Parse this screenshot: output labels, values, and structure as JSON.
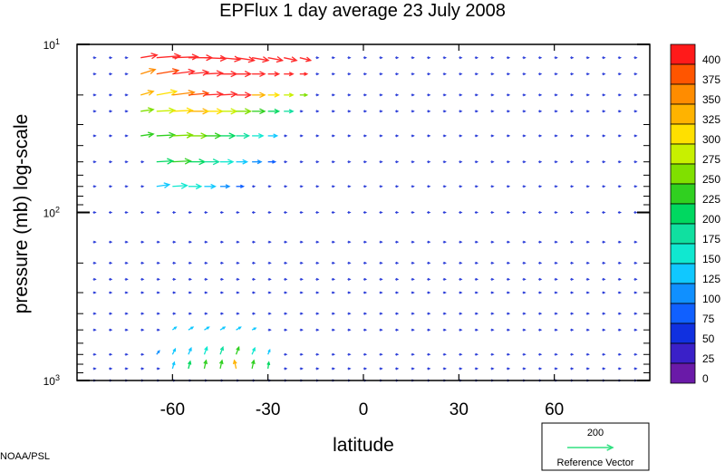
{
  "chart_data": {
    "type": "vector-field",
    "title": "EPFlux  1 day average  23 July       2008",
    "xlabel": "latitude",
    "ylabel": "pressure (mb)  log-scale",
    "xlim": [
      -90,
      90
    ],
    "ylim_log10": [
      1,
      3
    ],
    "x_ticks": [
      {
        "value": -60,
        "label": "-60"
      },
      {
        "value": -30,
        "label": "-30"
      },
      {
        "value": 0,
        "label": "0"
      },
      {
        "value": 30,
        "label": "30"
      },
      {
        "value": 60,
        "label": "60"
      }
    ],
    "y_ticks": [
      {
        "exp": 1,
        "label": "10",
        "sup": "1"
      },
      {
        "exp": 2,
        "label": "10",
        "sup": "2"
      },
      {
        "exp": 3,
        "label": "10",
        "sup": "3"
      }
    ],
    "colorbar": {
      "levels": [
        "400",
        "375",
        "350",
        "325",
        "300",
        "275",
        "250",
        "225",
        "200",
        "175",
        "150",
        "125",
        "100",
        "75",
        "50",
        "25",
        "0"
      ],
      "colors": [
        "#ff1a1a",
        "#ff5500",
        "#ff8c00",
        "#ffb300",
        "#ffe000",
        "#c8f000",
        "#80e000",
        "#30d020",
        "#00d860",
        "#10e0a0",
        "#10e8d0",
        "#10c8ff",
        "#1090ff",
        "#1060ff",
        "#1030e0",
        "#3a20c8",
        "#6a1aa8"
      ]
    },
    "reference_vector": {
      "value": "200",
      "label": "Reference Vector",
      "color": "#30e080"
    },
    "vectors": [
      {
        "lat": -70,
        "p": 12,
        "u": 18,
        "v": 3,
        "c": "#ff2a2a"
      },
      {
        "lat": -65,
        "p": 12,
        "u": 26,
        "v": 2,
        "c": "#ff2a2a"
      },
      {
        "lat": -60,
        "p": 12,
        "u": 28,
        "v": 1,
        "c": "#ff2a2a"
      },
      {
        "lat": -55,
        "p": 12,
        "u": 26,
        "v": 0,
        "c": "#ff2a2a"
      },
      {
        "lat": -50,
        "p": 12,
        "u": 24,
        "v": -1,
        "c": "#ff2a2a"
      },
      {
        "lat": -45,
        "p": 12,
        "u": 22,
        "v": -2,
        "c": "#ff2a2a"
      },
      {
        "lat": -40,
        "p": 12,
        "u": 20,
        "v": -3,
        "c": "#ff2a2a"
      },
      {
        "lat": -35,
        "p": 12,
        "u": 18,
        "v": -3,
        "c": "#ff2a2a"
      },
      {
        "lat": -30,
        "p": 12,
        "u": 16,
        "v": -3,
        "c": "#ff2a2a"
      },
      {
        "lat": -25,
        "p": 12,
        "u": 14,
        "v": -3,
        "c": "#ff2a2a"
      },
      {
        "lat": -20,
        "p": 12,
        "u": 12,
        "v": -3,
        "c": "#ff2a2a"
      },
      {
        "lat": -70,
        "p": 15,
        "u": 16,
        "v": 5,
        "c": "#ff8c00"
      },
      {
        "lat": -65,
        "p": 15,
        "u": 24,
        "v": 4,
        "c": "#ff4a00"
      },
      {
        "lat": -60,
        "p": 15,
        "u": 24,
        "v": 3,
        "c": "#ff2a2a"
      },
      {
        "lat": -55,
        "p": 15,
        "u": 22,
        "v": 2,
        "c": "#ff2a2a"
      },
      {
        "lat": -50,
        "p": 15,
        "u": 20,
        "v": 1,
        "c": "#ff2a2a"
      },
      {
        "lat": -45,
        "p": 15,
        "u": 18,
        "v": 0,
        "c": "#ff2a2a"
      },
      {
        "lat": -40,
        "p": 15,
        "u": 16,
        "v": 0,
        "c": "#ff2a2a"
      },
      {
        "lat": -35,
        "p": 15,
        "u": 14,
        "v": 0,
        "c": "#ff2a2a"
      },
      {
        "lat": -30,
        "p": 15,
        "u": 12,
        "v": 0,
        "c": "#ff2a2a"
      },
      {
        "lat": -25,
        "p": 15,
        "u": 10,
        "v": 0,
        "c": "#ff2a2a"
      },
      {
        "lat": -20,
        "p": 15,
        "u": 8,
        "v": 0,
        "c": "#ff2a2a"
      },
      {
        "lat": -70,
        "p": 20,
        "u": 14,
        "v": 4,
        "c": "#ffb300"
      },
      {
        "lat": -65,
        "p": 20,
        "u": 22,
        "v": 4,
        "c": "#ffe000"
      },
      {
        "lat": -60,
        "p": 20,
        "u": 24,
        "v": 3,
        "c": "#ff8c00"
      },
      {
        "lat": -55,
        "p": 20,
        "u": 22,
        "v": 2,
        "c": "#ff4a00"
      },
      {
        "lat": -50,
        "p": 20,
        "u": 20,
        "v": 1,
        "c": "#ff2a2a"
      },
      {
        "lat": -45,
        "p": 20,
        "u": 18,
        "v": 1,
        "c": "#ff2a2a"
      },
      {
        "lat": -40,
        "p": 20,
        "u": 16,
        "v": 0,
        "c": "#ff2a2a"
      },
      {
        "lat": -35,
        "p": 20,
        "u": 14,
        "v": 0,
        "c": "#ffb300"
      },
      {
        "lat": -30,
        "p": 20,
        "u": 12,
        "v": 0,
        "c": "#ffe000"
      },
      {
        "lat": -25,
        "p": 20,
        "u": 10,
        "v": 0,
        "c": "#c8f000"
      },
      {
        "lat": -20,
        "p": 20,
        "u": 8,
        "v": 0,
        "c": "#80e000"
      },
      {
        "lat": -70,
        "p": 25,
        "u": 14,
        "v": 2,
        "c": "#80e000"
      },
      {
        "lat": -65,
        "p": 25,
        "u": 20,
        "v": 1,
        "c": "#c8f000"
      },
      {
        "lat": -60,
        "p": 25,
        "u": 22,
        "v": 1,
        "c": "#ffe000"
      },
      {
        "lat": -55,
        "p": 25,
        "u": 22,
        "v": 0,
        "c": "#ffb300"
      },
      {
        "lat": -50,
        "p": 25,
        "u": 20,
        "v": 0,
        "c": "#ffe000"
      },
      {
        "lat": -45,
        "p": 25,
        "u": 18,
        "v": 0,
        "c": "#c8f000"
      },
      {
        "lat": -40,
        "p": 25,
        "u": 16,
        "v": 0,
        "c": "#80e000"
      },
      {
        "lat": -35,
        "p": 25,
        "u": 14,
        "v": 0,
        "c": "#30d020"
      },
      {
        "lat": -30,
        "p": 25,
        "u": 12,
        "v": 0,
        "c": "#00d860"
      },
      {
        "lat": -25,
        "p": 25,
        "u": 10,
        "v": 0,
        "c": "#10e0a0"
      },
      {
        "lat": -70,
        "p": 35,
        "u": 14,
        "v": 2,
        "c": "#30d020"
      },
      {
        "lat": -65,
        "p": 35,
        "u": 20,
        "v": 1,
        "c": "#30d020"
      },
      {
        "lat": -60,
        "p": 35,
        "u": 22,
        "v": 1,
        "c": "#80e000"
      },
      {
        "lat": -55,
        "p": 35,
        "u": 20,
        "v": 0,
        "c": "#80e000"
      },
      {
        "lat": -50,
        "p": 35,
        "u": 18,
        "v": 0,
        "c": "#30d020"
      },
      {
        "lat": -45,
        "p": 35,
        "u": 16,
        "v": 0,
        "c": "#00d860"
      },
      {
        "lat": -40,
        "p": 35,
        "u": 14,
        "v": 0,
        "c": "#10e0a0"
      },
      {
        "lat": -35,
        "p": 35,
        "u": 12,
        "v": 0,
        "c": "#10e8d0"
      },
      {
        "lat": -30,
        "p": 35,
        "u": 10,
        "v": 0,
        "c": "#10c8ff"
      },
      {
        "lat": -65,
        "p": 50,
        "u": 18,
        "v": 1,
        "c": "#00d860"
      },
      {
        "lat": -60,
        "p": 50,
        "u": 20,
        "v": 1,
        "c": "#30d020"
      },
      {
        "lat": -55,
        "p": 50,
        "u": 18,
        "v": 0,
        "c": "#00d860"
      },
      {
        "lat": -50,
        "p": 50,
        "u": 16,
        "v": 0,
        "c": "#10e0a0"
      },
      {
        "lat": -45,
        "p": 50,
        "u": 14,
        "v": 0,
        "c": "#10e8d0"
      },
      {
        "lat": -40,
        "p": 50,
        "u": 12,
        "v": 0,
        "c": "#10c8ff"
      },
      {
        "lat": -35,
        "p": 50,
        "u": 10,
        "v": 0,
        "c": "#1090ff"
      },
      {
        "lat": -30,
        "p": 50,
        "u": 8,
        "v": 0,
        "c": "#1060ff"
      },
      {
        "lat": -65,
        "p": 70,
        "u": 14,
        "v": 2,
        "c": "#10c8ff"
      },
      {
        "lat": -60,
        "p": 70,
        "u": 16,
        "v": 1,
        "c": "#10e8d0"
      },
      {
        "lat": -55,
        "p": 70,
        "u": 14,
        "v": 0,
        "c": "#10e8d0"
      },
      {
        "lat": -50,
        "p": 70,
        "u": 12,
        "v": 0,
        "c": "#10c8ff"
      },
      {
        "lat": -45,
        "p": 70,
        "u": 10,
        "v": 0,
        "c": "#1090ff"
      },
      {
        "lat": -40,
        "p": 70,
        "u": 8,
        "v": 0,
        "c": "#1060ff"
      },
      {
        "lat": -60,
        "p": 500,
        "u": 4,
        "v": 3,
        "c": "#10c8ff"
      },
      {
        "lat": -55,
        "p": 500,
        "u": 5,
        "v": 3,
        "c": "#10c8ff"
      },
      {
        "lat": -50,
        "p": 500,
        "u": 5,
        "v": 3,
        "c": "#10c8ff"
      },
      {
        "lat": -45,
        "p": 500,
        "u": 5,
        "v": 3,
        "c": "#10c8ff"
      },
      {
        "lat": -40,
        "p": 500,
        "u": 5,
        "v": 3,
        "c": "#10c8ff"
      },
      {
        "lat": -35,
        "p": 500,
        "u": 4,
        "v": 2,
        "c": "#10c8ff"
      },
      {
        "lat": -65,
        "p": 700,
        "u": 3,
        "v": 4,
        "c": "#1090ff"
      },
      {
        "lat": -60,
        "p": 700,
        "u": 3,
        "v": 6,
        "c": "#10c8ff"
      },
      {
        "lat": -55,
        "p": 700,
        "u": 3,
        "v": 7,
        "c": "#10c8ff"
      },
      {
        "lat": -50,
        "p": 700,
        "u": 3,
        "v": 8,
        "c": "#10e8d0"
      },
      {
        "lat": -45,
        "p": 700,
        "u": 3,
        "v": 8,
        "c": "#10e0a0"
      },
      {
        "lat": -40,
        "p": 700,
        "u": 3,
        "v": 8,
        "c": "#30d020"
      },
      {
        "lat": -35,
        "p": 700,
        "u": 3,
        "v": 7,
        "c": "#10e8d0"
      },
      {
        "lat": -30,
        "p": 700,
        "u": 2,
        "v": 5,
        "c": "#10c8ff"
      },
      {
        "lat": -60,
        "p": 850,
        "u": 2,
        "v": 7,
        "c": "#10c8ff"
      },
      {
        "lat": -55,
        "p": 850,
        "u": 2,
        "v": 8,
        "c": "#00d860"
      },
      {
        "lat": -50,
        "p": 850,
        "u": 2,
        "v": 9,
        "c": "#30d020"
      },
      {
        "lat": -45,
        "p": 850,
        "u": 2,
        "v": 9,
        "c": "#30d020"
      },
      {
        "lat": -40,
        "p": 850,
        "u": -2,
        "v": 9,
        "c": "#ffb300"
      },
      {
        "lat": -35,
        "p": 850,
        "u": 2,
        "v": 9,
        "c": "#30d020"
      },
      {
        "lat": -30,
        "p": 850,
        "u": 1,
        "v": 7,
        "c": "#00d860"
      }
    ]
  },
  "footer": {
    "credit": "NOAA/PSL"
  }
}
